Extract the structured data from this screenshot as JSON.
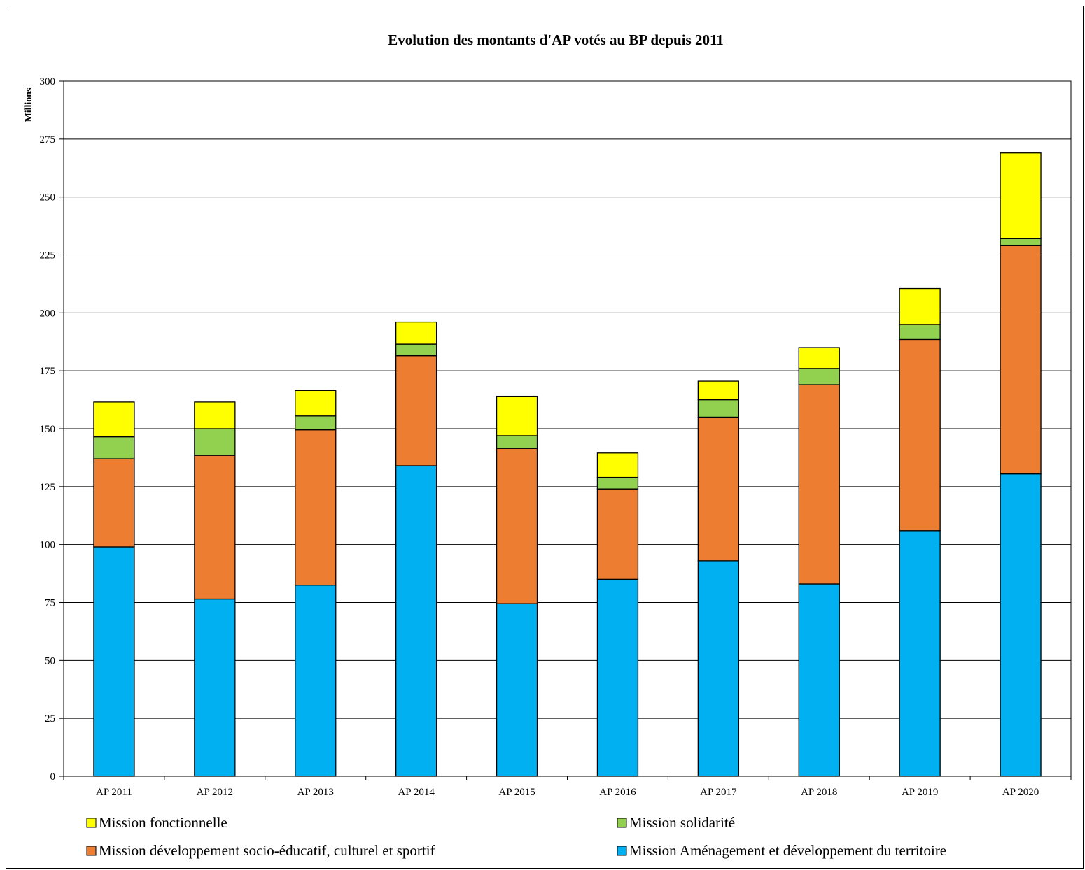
{
  "chart_data": {
    "type": "bar",
    "stacked": true,
    "title": "Evolution des montants d'AP votés au BP depuis 2011",
    "ylabel": "Millions",
    "xlabel": "",
    "ylim": [
      0,
      300
    ],
    "yticks": [
      0,
      25,
      50,
      75,
      100,
      125,
      150,
      175,
      200,
      225,
      250,
      275,
      300
    ],
    "grid": true,
    "legend_position": "bottom",
    "categories": [
      "AP 2011",
      "AP 2012",
      "AP 2013",
      "AP 2014",
      "AP 2015",
      "AP 2016",
      "AP 2017",
      "AP 2018",
      "AP 2019",
      "AP 2020"
    ],
    "series": [
      {
        "name": "Mission Aménagement et développement du territoire",
        "color": "#00B0F0",
        "values": [
          99,
          76.5,
          82.5,
          134,
          74.5,
          85,
          93,
          83,
          106,
          130.5
        ]
      },
      {
        "name": "Mission développement socio-éducatif, culturel et sportif",
        "color": "#ED7D31",
        "values": [
          38,
          62,
          67,
          47.5,
          67,
          39,
          62,
          86,
          82.5,
          98.5
        ]
      },
      {
        "name": "Mission solidarité",
        "color": "#92D050",
        "values": [
          9.5,
          11.5,
          6,
          5,
          5.5,
          5,
          7.5,
          7,
          6.5,
          3
        ]
      },
      {
        "name": "Mission fonctionnelle",
        "color": "#FFFF00",
        "values": [
          15,
          11.5,
          11,
          9.5,
          17,
          10.5,
          8,
          9,
          15.5,
          37
        ]
      }
    ],
    "legend_rows": [
      [
        "Mission fonctionnelle",
        "Mission solidarité"
      ],
      [
        "Mission développement socio-éducatif, culturel et sportif",
        "Mission Aménagement et développement du territoire"
      ]
    ]
  }
}
